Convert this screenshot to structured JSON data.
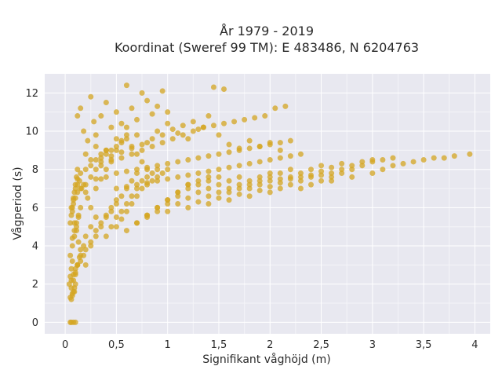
{
  "chart_data": {
    "type": "scatter",
    "title": "År 1979 - 2019",
    "subtitle": "Koordinat (Sweref 99 TM): E 483486, N 6204763",
    "xlabel": "Signifikant våghöjd (m)",
    "ylabel": "Vågperiod (s)",
    "xlim": [
      -0.2,
      4.15
    ],
    "ylim": [
      -0.6,
      13.0
    ],
    "grid": true,
    "legend": "none",
    "x_ticks": [
      0,
      0.5,
      1,
      1.5,
      2,
      2.5,
      3,
      3.5,
      4
    ],
    "x_tick_labels": [
      "0",
      "0,5",
      "1",
      "1,5",
      "2",
      "2,5",
      "3",
      "3,5",
      "4"
    ],
    "y_ticks": [
      0,
      2,
      4,
      6,
      8,
      10,
      12
    ],
    "y_tick_labels": [
      "0",
      "2",
      "4",
      "6",
      "8",
      "10",
      "12"
    ],
    "series": [
      {
        "color": "#d4a521",
        "x": [
          0.05,
          0.06,
          0.08,
          0.1,
          0.05,
          0.07,
          0.09,
          0.04,
          0.06,
          0.08,
          0.1,
          0.12,
          0.05,
          0.07,
          0.09,
          0.11,
          0.13,
          0.06,
          0.08,
          0.1,
          0.12,
          0.14,
          0.16,
          0.07,
          0.09,
          0.11,
          0.13,
          0.15,
          0.18,
          0.2,
          0.08,
          0.1,
          0.12,
          0.15,
          0.18,
          0.2,
          0.22,
          0.25,
          0.1,
          0.12,
          0.15,
          0.18,
          0.2,
          0.25,
          0.3,
          0.12,
          0.15,
          0.2,
          0.25,
          0.3,
          0.35,
          0.4,
          0.15,
          0.2,
          0.25,
          0.3,
          0.35,
          0.4,
          0.45,
          0.5,
          0.2,
          0.25,
          0.3,
          0.35,
          0.4,
          0.45,
          0.5,
          0.55,
          0.6,
          0.25,
          0.3,
          0.35,
          0.4,
          0.45,
          0.5,
          0.55,
          0.6,
          0.65,
          0.7,
          0.3,
          0.35,
          0.4,
          0.45,
          0.5,
          0.55,
          0.6,
          0.65,
          0.7,
          0.75,
          0.8,
          0.4,
          0.45,
          0.5,
          0.55,
          0.6,
          0.65,
          0.7,
          0.75,
          0.8,
          0.85,
          0.9,
          0.5,
          0.55,
          0.6,
          0.65,
          0.7,
          0.75,
          0.8,
          0.85,
          0.9,
          0.95,
          1.0,
          0.6,
          0.7,
          0.8,
          0.9,
          1.0,
          1.1,
          1.2,
          0.7,
          0.8,
          0.9,
          1.0,
          1.1,
          1.2,
          1.3,
          1.4,
          0.8,
          0.9,
          1.0,
          1.1,
          1.2,
          1.3,
          1.4,
          1.5,
          1.0,
          1.1,
          1.2,
          1.3,
          1.4,
          1.5,
          1.6,
          1.7,
          1.2,
          1.3,
          1.4,
          1.5,
          1.6,
          1.7,
          1.8,
          1.9,
          2.0,
          1.4,
          1.5,
          1.6,
          1.7,
          1.8,
          1.9,
          2.0,
          2.1,
          2.2,
          1.6,
          1.7,
          1.8,
          1.9,
          2.0,
          2.1,
          2.2,
          2.3,
          2.4,
          2.5,
          1.8,
          1.9,
          2.0,
          2.1,
          2.2,
          2.3,
          2.4,
          2.5,
          2.6,
          2.7,
          2.0,
          2.1,
          2.2,
          2.3,
          2.4,
          2.5,
          2.6,
          2.7,
          2.8,
          2.9,
          3.0,
          2.3,
          2.4,
          2.5,
          2.6,
          2.7,
          2.8,
          2.9,
          3.0,
          3.1,
          3.2,
          2.6,
          2.8,
          3.0,
          3.1,
          3.2,
          3.3,
          3.4,
          3.5,
          3.6,
          3.7,
          3.8,
          3.95,
          0.12,
          0.15,
          0.18,
          0.22,
          0.25,
          0.28,
          0.3,
          0.35,
          0.4,
          0.45,
          0.5,
          0.55,
          0.6,
          0.65,
          0.7,
          0.75,
          0.8,
          0.85,
          0.9,
          0.95,
          1.0,
          0.2,
          0.3,
          0.4,
          0.5,
          0.6,
          0.7,
          0.8,
          0.9,
          1.0,
          1.1,
          1.2,
          1.3,
          1.4,
          1.5,
          1.6,
          1.7,
          1.8,
          1.9,
          2.0,
          2.1,
          0.25,
          0.35,
          0.45,
          0.55,
          0.65,
          0.75,
          0.85,
          0.95,
          1.05,
          1.15,
          1.25,
          1.35,
          1.45,
          1.55,
          0.3,
          0.4,
          0.5,
          0.6,
          0.7,
          0.8,
          0.9,
          1.0,
          1.1,
          1.2,
          1.3,
          1.4,
          1.5,
          1.6,
          1.7,
          1.8,
          1.9,
          2.0,
          2.1,
          2.2,
          0.35,
          0.45,
          0.55,
          0.65,
          0.75,
          0.85,
          0.95,
          1.05,
          1.15,
          1.25,
          1.35,
          1.45,
          1.55,
          1.65,
          1.75,
          1.85,
          1.95,
          2.05,
          2.15,
          0.5,
          0.6,
          0.7,
          0.8,
          0.9,
          1.0,
          1.1,
          1.2,
          1.3,
          1.4,
          1.5,
          1.6,
          1.7,
          1.8,
          1.9,
          2.0,
          2.1,
          2.2,
          2.3,
          0.06,
          0.07,
          0.08,
          0.09,
          0.1,
          0.05,
          0.06,
          0.07,
          0.05,
          0.06,
          0.07,
          0.08,
          0.09,
          0.1,
          0.11,
          0.12,
          0.06,
          0.08,
          0.1,
          0.12,
          0.14,
          0.07,
          0.09,
          0.11,
          0.13,
          0.15
        ],
        "y": [
          0.0,
          0.0,
          0.0,
          0.0,
          1.3,
          1.5,
          1.6,
          2.0,
          2.2,
          2.5,
          2.8,
          3.0,
          3.5,
          4.0,
          4.5,
          5.0,
          5.5,
          6.0,
          6.5,
          7.0,
          7.2,
          7.4,
          7.0,
          5.8,
          5.2,
          4.8,
          4.2,
          3.8,
          3.5,
          3.0,
          6.2,
          6.5,
          6.8,
          7.0,
          7.2,
          6.8,
          6.5,
          6.0,
          2.5,
          3.0,
          3.5,
          4.0,
          4.5,
          5.0,
          5.5,
          7.5,
          7.8,
          8.0,
          8.2,
          8.5,
          8.8,
          9.0,
          3.2,
          3.8,
          4.2,
          4.8,
          5.2,
          5.6,
          6.0,
          6.4,
          7.2,
          7.6,
          8.0,
          8.4,
          8.8,
          9.0,
          9.2,
          9.4,
          9.6,
          4.0,
          4.5,
          5.0,
          5.5,
          5.8,
          6.2,
          6.6,
          7.0,
          7.4,
          7.8,
          7.0,
          7.5,
          8.0,
          8.5,
          9.0,
          9.5,
          9.8,
          9.2,
          8.8,
          8.4,
          8.0,
          4.5,
          5.0,
          5.5,
          5.8,
          6.2,
          6.6,
          7.0,
          7.4,
          7.6,
          7.8,
          8.0,
          5.0,
          5.4,
          5.8,
          6.2,
          6.6,
          7.0,
          7.2,
          7.4,
          7.6,
          7.8,
          8.0,
          4.8,
          5.2,
          5.6,
          6.0,
          6.4,
          6.8,
          7.2,
          5.2,
          5.6,
          6.0,
          6.4,
          6.8,
          7.2,
          7.4,
          7.6,
          5.5,
          5.8,
          6.2,
          6.6,
          7.0,
          7.2,
          7.4,
          7.6,
          5.8,
          6.2,
          6.5,
          6.8,
          7.0,
          7.2,
          7.4,
          7.6,
          6.0,
          6.3,
          6.6,
          6.8,
          7.0,
          7.2,
          7.4,
          7.6,
          7.8,
          6.2,
          6.5,
          6.8,
          7.0,
          7.2,
          7.4,
          7.6,
          7.8,
          8.0,
          6.4,
          6.7,
          7.0,
          7.2,
          7.4,
          7.5,
          7.6,
          7.8,
          8.0,
          8.2,
          6.6,
          6.9,
          7.1,
          7.3,
          7.5,
          7.6,
          7.7,
          7.9,
          8.1,
          8.3,
          6.8,
          7.0,
          7.2,
          7.4,
          7.6,
          7.7,
          7.8,
          8.0,
          8.2,
          8.4,
          8.5,
          7.0,
          7.2,
          7.4,
          7.6,
          7.8,
          8.0,
          8.2,
          8.4,
          8.5,
          8.6,
          7.4,
          7.6,
          7.8,
          8.0,
          8.2,
          8.3,
          8.4,
          8.5,
          8.6,
          8.6,
          8.7,
          8.8,
          10.8,
          11.2,
          10.0,
          9.5,
          11.8,
          10.5,
          9.8,
          10.8,
          11.5,
          10.2,
          11.0,
          10.4,
          12.4,
          11.2,
          10.6,
          12.0,
          11.6,
          10.9,
          11.3,
          12.1,
          11.0,
          8.8,
          9.2,
          9.0,
          9.6,
          10.2,
          9.8,
          9.4,
          10.0,
          10.4,
          9.9,
          9.6,
          10.1,
          10.8,
          9.8,
          9.3,
          9.1,
          9.5,
          9.2,
          9.4,
          9.0,
          8.5,
          8.6,
          8.7,
          8.9,
          9.1,
          9.3,
          9.6,
          9.8,
          10.1,
          10.3,
          10.5,
          10.2,
          12.3,
          12.2,
          7.5,
          7.6,
          7.8,
          7.9,
          8.0,
          8.1,
          8.2,
          8.3,
          8.4,
          8.5,
          8.6,
          8.7,
          8.8,
          8.9,
          9.0,
          9.1,
          9.2,
          9.3,
          9.4,
          9.5,
          8.2,
          8.4,
          8.6,
          8.8,
          9.0,
          9.2,
          9.4,
          9.6,
          9.8,
          10.0,
          10.2,
          10.3,
          10.4,
          10.5,
          10.6,
          10.7,
          10.8,
          11.2,
          11.3,
          7.0,
          7.1,
          7.2,
          7.3,
          7.4,
          7.5,
          7.6,
          7.7,
          7.8,
          7.9,
          8.0,
          8.1,
          8.2,
          8.3,
          8.4,
          8.5,
          8.6,
          8.7,
          8.8,
          1.2,
          1.4,
          1.6,
          1.8,
          2.0,
          2.4,
          2.8,
          3.2,
          5.2,
          5.6,
          6.0,
          6.4,
          6.8,
          7.2,
          7.6,
          8.0,
          1.8,
          2.2,
          2.6,
          3.0,
          3.4,
          4.4,
          4.8,
          5.2,
          5.6,
          6.0
        ]
      }
    ]
  }
}
